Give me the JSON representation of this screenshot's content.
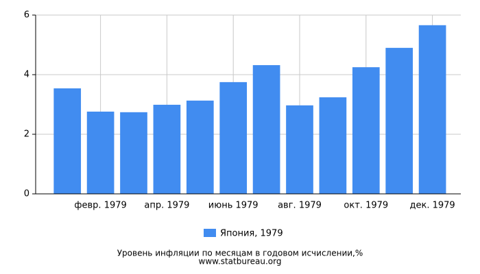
{
  "chart_data": {
    "type": "bar",
    "title": "Уровень инфляции по месяцам в годовом исчислении,%",
    "source": "www.statbureau.org",
    "categories": [
      null,
      "февр. 1979",
      null,
      "апр. 1979",
      null,
      "июнь 1979",
      null,
      "авг. 1979",
      null,
      "окт. 1979",
      null,
      "дек. 1979"
    ],
    "series": [
      {
        "name": "Япония, 1979",
        "color": "#418cf0",
        "values": [
          3.54,
          2.76,
          2.74,
          2.99,
          3.13,
          3.75,
          4.32,
          2.97,
          3.24,
          4.25,
          4.9,
          5.66
        ]
      }
    ],
    "ylim": [
      0,
      6
    ],
    "yticks": [
      0,
      2,
      4,
      6
    ],
    "grid": true
  }
}
